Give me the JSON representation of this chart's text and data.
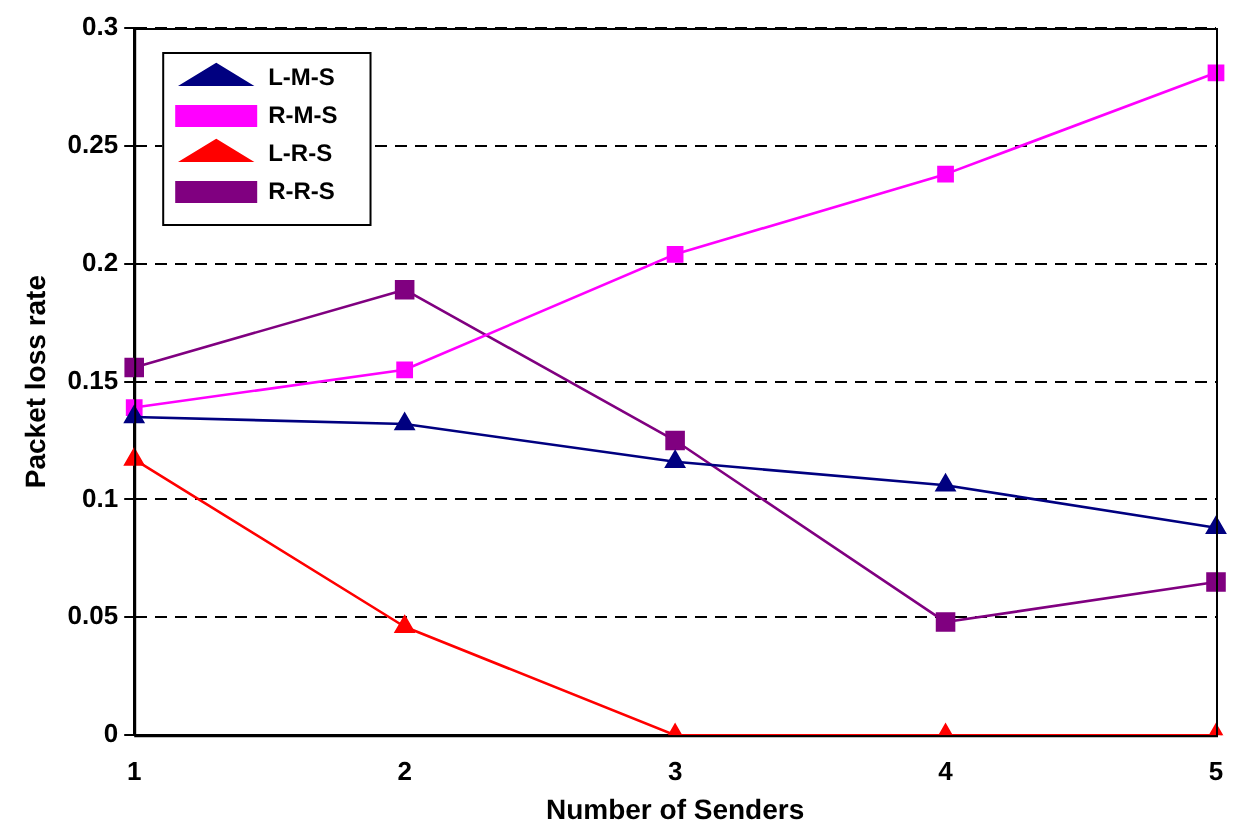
{
  "chart_data": {
    "type": "line",
    "xlabel": "Number of Senders",
    "ylabel": "Packet loss rate",
    "categories": [
      "1",
      "2",
      "3",
      "4",
      "5"
    ],
    "series": [
      {
        "name": "L-M-S",
        "color": "#000080",
        "marker": "triangle",
        "values": [
          0.135,
          0.132,
          0.116,
          0.106,
          0.088
        ]
      },
      {
        "name": "R-M-S",
        "color": "#ff00ff",
        "marker": "square",
        "values": [
          0.139,
          0.155,
          0.204,
          0.238,
          0.281
        ]
      },
      {
        "name": "L-R-S",
        "color": "#ff0000",
        "marker": "triangle",
        "values": [
          0.117,
          0.046,
          0,
          0,
          0
        ]
      },
      {
        "name": "R-R-S",
        "color": "#800080",
        "marker": "square",
        "values": [
          0.156,
          0.189,
          0.125,
          0.048,
          0.065
        ]
      }
    ],
    "ylim": [
      0,
      0.3
    ],
    "yticks": [
      0,
      0.05,
      0.1,
      0.15,
      0.2,
      0.25,
      0.3
    ],
    "grid": "y",
    "line_style": "solid",
    "legend": "top left"
  }
}
